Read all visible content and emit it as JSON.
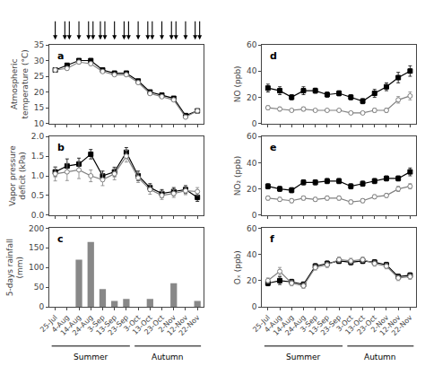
{
  "chart_data": [
    {
      "type": "line",
      "title": "a",
      "ylabel": "Atmospheric\ntemperature (°C)",
      "categories": [
        "25-Jul",
        "4-Aug",
        "14-Aug",
        "24-Aug",
        "3-Sep",
        "13-Sep",
        "23-Sep",
        "3-Oct",
        "13-Oct",
        "23-Oct",
        "2-Nov",
        "12-Nov",
        "22-Nov"
      ],
      "series": [
        {
          "color": "black",
          "marker": "square",
          "line_style": "solid",
          "values": [
            27.0,
            28.5,
            30.0,
            30.0,
            27.0,
            26.0,
            26.0,
            23.5,
            20.0,
            19.0,
            18.0,
            12.5,
            14.0
          ],
          "errors": [
            0.5,
            0.6,
            0.5,
            0.5,
            0.4,
            0.4,
            0.4,
            0.5,
            0.5,
            0.5,
            0.5,
            0.5,
            0.5
          ]
        },
        {
          "color": "gray",
          "marker": "circle-open",
          "line_style": "solid",
          "values": [
            27.0,
            27.5,
            29.5,
            29.0,
            26.5,
            25.5,
            25.5,
            23.0,
            19.5,
            18.5,
            17.5,
            12.0,
            14.0
          ],
          "errors": [
            0.5,
            0.5,
            0.5,
            0.5,
            0.4,
            0.4,
            0.4,
            0.5,
            0.5,
            0.5,
            0.5,
            0.5,
            0.5
          ]
        }
      ],
      "ylim": [
        10,
        35
      ],
      "yticks": [
        10,
        15,
        20,
        25,
        30,
        35
      ],
      "grid": false,
      "tick_labels": "y",
      "arrows_solid": [
        "25-Jul",
        "14-Aug",
        "13-Sep",
        "3-Oct",
        "23-Oct",
        "12-Nov"
      ],
      "arrows_double": [
        "4-Aug",
        "24-Aug",
        "3-Sep",
        "23-Sep",
        "13-Oct",
        "2-Nov",
        "22-Nov"
      ]
    },
    {
      "type": "line",
      "title": "b",
      "ylabel": "Vapor pressure\ndeficit (kPa)",
      "categories": [
        "25-Jul",
        "4-Aug",
        "14-Aug",
        "24-Aug",
        "3-Sep",
        "13-Sep",
        "23-Sep",
        "3-Oct",
        "13-Oct",
        "23-Oct",
        "2-Nov",
        "12-Nov",
        "22-Nov"
      ],
      "series": [
        {
          "color": "black",
          "marker": "square",
          "line_style": "solid",
          "values": [
            1.1,
            1.25,
            1.3,
            1.55,
            1.0,
            1.1,
            1.6,
            1.0,
            0.7,
            0.55,
            0.6,
            0.65,
            0.45
          ],
          "errors": [
            0.12,
            0.18,
            0.15,
            0.12,
            0.12,
            0.12,
            0.12,
            0.12,
            0.1,
            0.1,
            0.1,
            0.1,
            0.1
          ]
        },
        {
          "color": "gray",
          "marker": "circle-open",
          "line_style": "solid",
          "values": [
            1.05,
            1.1,
            1.15,
            1.0,
            0.9,
            1.05,
            1.5,
            0.95,
            0.65,
            0.5,
            0.55,
            0.62,
            0.6
          ],
          "errors": [
            0.18,
            0.22,
            0.22,
            0.15,
            0.15,
            0.15,
            0.15,
            0.12,
            0.12,
            0.1,
            0.1,
            0.1,
            0.1
          ]
        }
      ],
      "ylim": [
        0.0,
        2.0
      ],
      "yticks": [
        {
          "value": 0.0,
          "label": "0.0"
        },
        0.5,
        {
          "value": 1.0,
          "label": "1.0"
        },
        1.5,
        {
          "value": 2.0,
          "label": "2.0"
        }
      ],
      "grid": false,
      "tick_labels": "y"
    },
    {
      "type": "bar",
      "title": "c",
      "ylabel": "5-days rainfall\n(mm)",
      "categories": [
        "25-Jul",
        "4-Aug",
        "14-Aug",
        "24-Aug",
        "3-Sep",
        "13-Sep",
        "23-Sep",
        "3-Oct",
        "13-Oct",
        "23-Oct",
        "2-Nov",
        "12-Nov",
        "22-Nov"
      ],
      "values": [
        0,
        0,
        120,
        165,
        45,
        15,
        20,
        0,
        20,
        0,
        60,
        0,
        15
      ],
      "color": "#888888",
      "ylim": [
        0,
        200
      ],
      "yticks": [
        0,
        50,
        100,
        150,
        200
      ],
      "grid": false,
      "seasons": [
        {
          "label": "Summer",
          "start": "25-Jul",
          "end": "23-Sep"
        },
        {
          "label": "Autumn",
          "start": "3-Oct",
          "end": "22-Nov"
        }
      ]
    },
    {
      "type": "line",
      "title": "d",
      "ylabel": "NO (ppb)",
      "categories": [
        "25-Jul",
        "4-Aug",
        "14-Aug",
        "24-Aug",
        "3-Sep",
        "13-Sep",
        "23-Sep",
        "3-Oct",
        "13-Oct",
        "23-Oct",
        "2-Nov",
        "12-Nov",
        "22-Nov"
      ],
      "series": [
        {
          "color": "black",
          "marker": "square",
          "line_style": "solid",
          "values": [
            27,
            25,
            20,
            25,
            25,
            22,
            23,
            20,
            17,
            23,
            28,
            35,
            40
          ],
          "errors": [
            3,
            3,
            2,
            3,
            2,
            2,
            2,
            2,
            2,
            3,
            3,
            4,
            4
          ]
        },
        {
          "color": "gray",
          "marker": "circle-open",
          "line_style": "solid",
          "values": [
            12,
            11,
            10,
            11,
            10,
            10,
            10,
            8,
            8,
            10,
            10,
            18,
            21
          ],
          "errors": [
            1.5,
            1.5,
            1,
            1.5,
            1,
            1,
            1,
            1,
            1,
            1.5,
            1.5,
            2.5,
            3
          ]
        }
      ],
      "ylim": [
        0,
        60
      ],
      "yticks": [
        0,
        20,
        40,
        60
      ],
      "grid": false,
      "tick_labels": "y"
    },
    {
      "type": "line",
      "title": "e",
      "ylabel": "NO₂ (ppb)",
      "categories": [
        "25-Jul",
        "4-Aug",
        "14-Aug",
        "24-Aug",
        "3-Sep",
        "13-Sep",
        "23-Sep",
        "3-Oct",
        "13-Oct",
        "23-Oct",
        "2-Nov",
        "12-Nov",
        "22-Nov"
      ],
      "series": [
        {
          "color": "black",
          "marker": "square",
          "line_style": "solid",
          "values": [
            22,
            20,
            19,
            25,
            25,
            26,
            26,
            22,
            24,
            26,
            28,
            28,
            33
          ],
          "errors": [
            2,
            2,
            2,
            2,
            2,
            2,
            2,
            2,
            2,
            2,
            2,
            2,
            3
          ]
        },
        {
          "color": "gray",
          "marker": "circle-open",
          "line_style": "solid",
          "values": [
            13,
            12,
            11,
            13,
            12,
            13,
            13,
            10,
            11,
            14,
            15,
            20,
            22
          ],
          "errors": [
            1.5,
            1.5,
            1.5,
            1.5,
            1.5,
            1.5,
            1.5,
            1.5,
            1.5,
            1.5,
            1.5,
            2,
            2
          ]
        }
      ],
      "ylim": [
        0,
        60
      ],
      "yticks": [
        0,
        20,
        40,
        60
      ],
      "grid": false,
      "tick_labels": "y"
    },
    {
      "type": "line",
      "title": "f",
      "ylabel": "Oₓ (ppb)",
      "categories": [
        "25-Jul",
        "4-Aug",
        "14-Aug",
        "24-Aug",
        "3-Sep",
        "13-Sep",
        "23-Sep",
        "3-Oct",
        "13-Oct",
        "23-Oct",
        "2-Nov",
        "12-Nov",
        "22-Nov"
      ],
      "series": [
        {
          "color": "black",
          "marker": "square",
          "line_style": "solid",
          "values": [
            18,
            20,
            19,
            17,
            31,
            33,
            35,
            34,
            35,
            34,
            32,
            23,
            24
          ],
          "errors": [
            2,
            3,
            2,
            2,
            2,
            2,
            2,
            2,
            2,
            2,
            2,
            2,
            2
          ]
        },
        {
          "color": "gray",
          "marker": "circle-open",
          "line_style": "solid",
          "values": [
            20,
            27,
            18,
            16,
            30,
            32,
            36,
            35,
            36,
            33,
            31,
            22,
            23
          ],
          "errors": [
            2,
            3,
            2,
            2,
            2,
            2,
            2,
            2,
            2,
            2,
            2,
            2,
            2
          ]
        }
      ],
      "ylim": [
        0,
        60
      ],
      "yticks": [
        0,
        20,
        40,
        60
      ],
      "grid": false,
      "seasons": [
        {
          "label": "Summer",
          "start": "25-Jul",
          "end": "23-Sep"
        },
        {
          "label": "Autumn",
          "start": "3-Oct",
          "end": "22-Nov"
        }
      ]
    }
  ]
}
